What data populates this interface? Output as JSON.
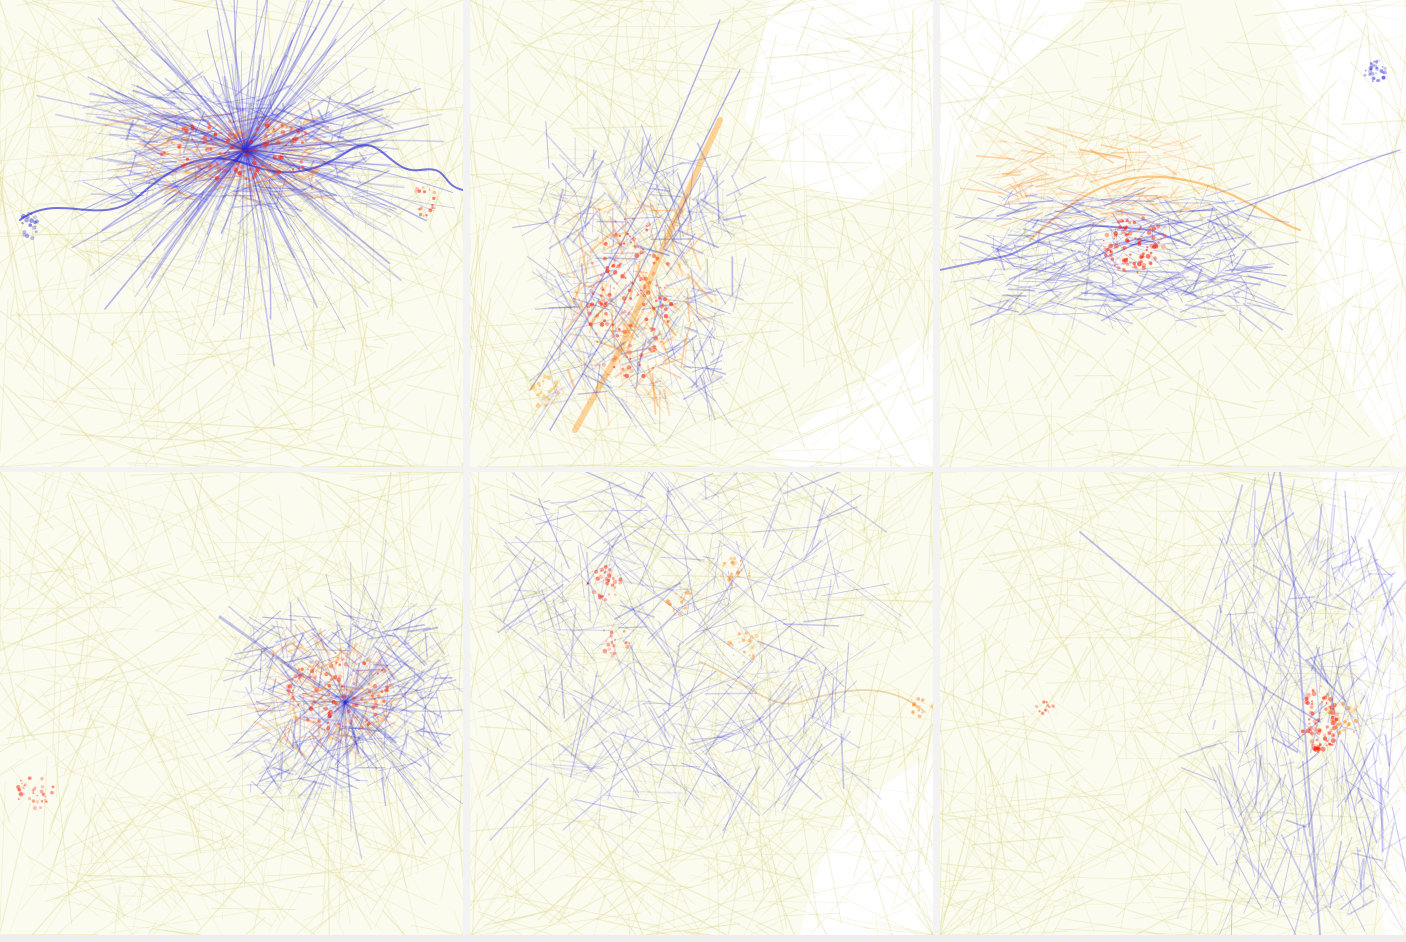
{
  "legend": {
    "color_meanings": {
      "blue": "#2a2ad8",
      "red": "#ff1a00",
      "yellow": "#d8d27a"
    }
  },
  "maps": [
    {
      "id": "map-1",
      "land_color": "#fbfbef",
      "water_color": "#ffffff",
      "road_color": "#d9d27a",
      "features": [
        "river",
        "dense-center",
        "outer-hubs"
      ],
      "hotspot_style": "horizontal-core"
    },
    {
      "id": "map-2",
      "land_color": "#fbfbef",
      "water_color": "#ffffff",
      "road_color": "#d9d27a",
      "features": [
        "island",
        "diagonal-core",
        "rivers"
      ],
      "hotspot_style": "diagonal-core"
    },
    {
      "id": "map-3",
      "land_color": "#fbfbef",
      "water_color": "#ffffff",
      "road_color": "#d9d27a",
      "features": [
        "bay",
        "peninsula",
        "bridge-lines"
      ],
      "hotspot_style": "northeast-core"
    },
    {
      "id": "map-4",
      "land_color": "#fbfbef",
      "water_color": "#ffffff",
      "road_color": "#d9d27a",
      "features": [
        "ring-city",
        "diagonal-axis",
        "satellite-cluster"
      ],
      "hotspot_style": "central-ring"
    },
    {
      "id": "map-5",
      "land_color": "#fbfbef",
      "water_color": "#ffffff",
      "road_color": "#d9d27a",
      "features": [
        "coastline",
        "multi-node",
        "harbor"
      ],
      "hotspot_style": "multi-node"
    },
    {
      "id": "map-6",
      "land_color": "#fbfbef",
      "water_color": "#ffffff",
      "road_color": "#d9d27a",
      "features": [
        "lakefront",
        "grid-city",
        "east-core"
      ],
      "hotspot_style": "lakefront-core"
    }
  ]
}
